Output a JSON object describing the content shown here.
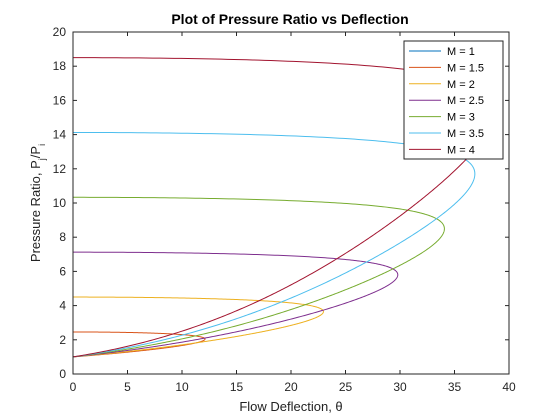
{
  "chart_data": {
    "type": "line",
    "title": "Plot of Pressure Ratio vs Deflection",
    "xlabel": "Flow Deflection, θ",
    "ylabel": {
      "main": "Pressure Ratio, P",
      "sub1": "j",
      "mid": "/P",
      "sub2": "i"
    },
    "xlim": [
      0,
      40
    ],
    "ylim": [
      0,
      20
    ],
    "xticks": [
      0,
      5,
      10,
      15,
      20,
      25,
      30,
      35,
      40
    ],
    "yticks": [
      0,
      2,
      4,
      6,
      8,
      10,
      12,
      14,
      16,
      18,
      20
    ],
    "grid": false,
    "legend_position": "top-right",
    "series": [
      {
        "name": "M = 1",
        "mach": 1.0,
        "color": "#0072BD"
      },
      {
        "name": "M = 1.5",
        "mach": 1.5,
        "color": "#D95319"
      },
      {
        "name": "M = 2",
        "mach": 2.0,
        "color": "#EDB120"
      },
      {
        "name": "M = 2.5",
        "mach": 2.5,
        "color": "#7E2F8E"
      },
      {
        "name": "M = 3",
        "mach": 3.0,
        "color": "#77AC30"
      },
      {
        "name": "M = 3.5",
        "mach": 3.5,
        "color": "#4DBEEE"
      },
      {
        "name": "M = 4",
        "mach": 4.0,
        "color": "#A2142F"
      }
    ]
  }
}
